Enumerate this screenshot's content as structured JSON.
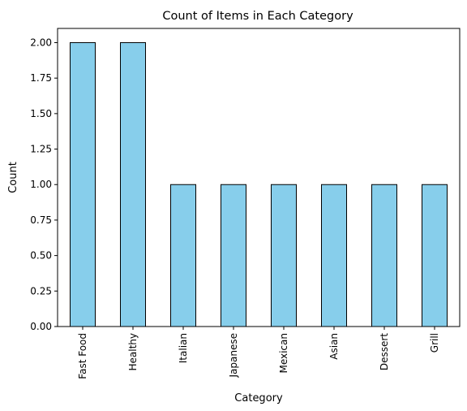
{
  "chart_data": {
    "type": "bar",
    "title": "Count of Items in Each Category",
    "xlabel": "Category",
    "ylabel": "Count",
    "categories": [
      "Fast Food",
      "Healthy",
      "Italian",
      "Japanese",
      "Mexican",
      "Asian",
      "Dessert",
      "Grill"
    ],
    "values": [
      2,
      2,
      1,
      1,
      1,
      1,
      1,
      1
    ],
    "ylim": [
      0,
      2.1
    ],
    "yticks": [
      "0.00",
      "0.25",
      "0.50",
      "0.75",
      "1.00",
      "1.25",
      "1.50",
      "1.75",
      "2.00"
    ],
    "grid": false,
    "legend": "none",
    "bar_color": "#87ceeb",
    "edge_color": "#000000"
  }
}
